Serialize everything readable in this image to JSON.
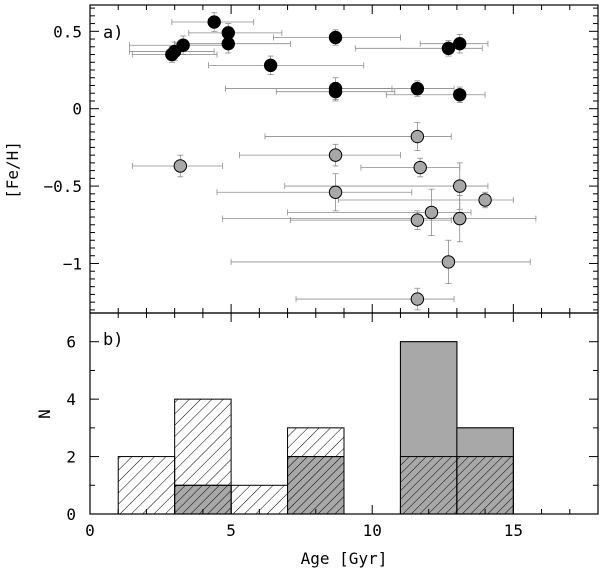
{
  "chart_data": [
    {
      "type": "scatter",
      "panel_label": "a)",
      "xlabel": "",
      "ylabel": "[Fe/H]",
      "xlim": [
        0,
        18
      ],
      "ylim": [
        -1.32,
        0.67
      ],
      "xticks": [
        0,
        5,
        10,
        15
      ],
      "yticks": [
        0.5,
        0,
        -0.5,
        -1
      ],
      "ytick_labels": [
        "0.5",
        "0",
        "−0.5",
        "−1"
      ],
      "grid": false,
      "colors": {
        "filled": "#000000",
        "open": "#a8a8a8",
        "errorbar": "#8c8c8c"
      },
      "series": [
        {
          "style": "filled",
          "points": [
            {
              "x": 2.9,
              "y": 0.35,
              "xerr": [
                1.4,
                1.6
              ],
              "yerr": 0.05
            },
            {
              "x": 3.0,
              "y": 0.37,
              "xerr": [
                1.6,
                1.4
              ],
              "yerr": 0.06
            },
            {
              "x": 3.3,
              "y": 0.41,
              "xerr": [
                1.9,
                1.7
              ],
              "yerr": 0.06
            },
            {
              "x": 4.4,
              "y": 0.56,
              "xerr": [
                1.5,
                1.4
              ],
              "yerr": 0.06
            },
            {
              "x": 4.9,
              "y": 0.49,
              "xerr": [
                1.4,
                1.9
              ],
              "yerr": 0.06
            },
            {
              "x": 4.9,
              "y": 0.42,
              "xerr": [
                1.9,
                2.2
              ],
              "yerr": 0.06
            },
            {
              "x": 6.4,
              "y": 0.28,
              "xerr": [
                2.2,
                3.3
              ],
              "yerr": 0.06
            },
            {
              "x": 8.7,
              "y": 0.46,
              "xerr": [
                2.2,
                2.3
              ],
              "yerr": 0.05
            },
            {
              "x": 8.7,
              "y": 0.13,
              "xerr": [
                3.9,
                2.0
              ],
              "yerr": 0.07
            },
            {
              "x": 8.7,
              "y": 0.11,
              "xerr": [
                2.1,
                2.1
              ],
              "yerr": 0.06
            },
            {
              "x": 11.6,
              "y": 0.13,
              "xerr": [
                3.1,
                1.3
              ],
              "yerr": 0.05
            },
            {
              "x": 12.7,
              "y": 0.39,
              "xerr": [
                3.3,
                1.2
              ],
              "yerr": 0.05
            },
            {
              "x": 13.1,
              "y": 0.42,
              "xerr": [
                1.4,
                1.0
              ],
              "yerr": 0.06
            },
            {
              "x": 13.1,
              "y": 0.09,
              "xerr": [
                2.6,
                0.9
              ],
              "yerr": 0.05
            }
          ]
        },
        {
          "style": "open",
          "points": [
            {
              "x": 3.2,
              "y": -0.37,
              "xerr": [
                1.7,
                1.5
              ],
              "yerr": 0.07
            },
            {
              "x": 8.7,
              "y": -0.3,
              "xerr": [
                3.4,
                2.3
              ],
              "yerr": 0.07
            },
            {
              "x": 8.7,
              "y": -0.54,
              "xerr": [
                4.2,
                2.7
              ],
              "yerr": 0.12
            },
            {
              "x": 11.6,
              "y": -0.18,
              "xerr": [
                5.4,
                1.2
              ],
              "yerr": 0.09
            },
            {
              "x": 11.7,
              "y": -0.38,
              "xerr": [
                2.1,
                1.4
              ],
              "yerr": 0.06
            },
            {
              "x": 11.6,
              "y": -0.72,
              "xerr": [
                4.5,
                1.2
              ],
              "yerr": 0.06
            },
            {
              "x": 12.1,
              "y": -0.67,
              "xerr": [
                5.1,
                1.4
              ],
              "yerr": 0.15
            },
            {
              "x": 13.1,
              "y": -0.5,
              "xerr": [
                6.2,
                1.0
              ],
              "yerr": 0.15
            },
            {
              "x": 13.1,
              "y": -0.71,
              "xerr": [
                8.4,
                2.7
              ],
              "yerr": 0.15
            },
            {
              "x": 14.0,
              "y": -0.59,
              "xerr": [
                5.2,
                1.0
              ],
              "yerr": 0.05
            },
            {
              "x": 12.7,
              "y": -0.99,
              "xerr": [
                7.7,
                2.9
              ],
              "yerr": 0.14
            },
            {
              "x": 11.6,
              "y": -1.23,
              "xerr": [
                4.3,
                1.3
              ],
              "yerr": 0.07
            }
          ]
        }
      ]
    },
    {
      "type": "bar",
      "panel_label": "b)",
      "xlabel": "Age [Gyr]",
      "ylabel": "N",
      "xlim": [
        0,
        18
      ],
      "ylim": [
        0,
        7
      ],
      "xticks": [
        0,
        5,
        10,
        15
      ],
      "yticks": [
        0,
        2,
        4,
        6
      ],
      "grid": false,
      "bin_edges": [
        1,
        3,
        5,
        7,
        9,
        11,
        13,
        15
      ],
      "series": [
        {
          "style": "hatched-outline",
          "values": [
            2,
            4,
            1,
            3,
            0,
            6,
            3
          ]
        },
        {
          "style": "gray-fill",
          "values": [
            0,
            1,
            0,
            2,
            0,
            6,
            3
          ]
        },
        {
          "style": "dense-hatch",
          "values": [
            0,
            1,
            0,
            2,
            0,
            2,
            2
          ]
        }
      ],
      "colors": {
        "gray": "#a8a8a8",
        "hatch": "#000000"
      }
    }
  ]
}
